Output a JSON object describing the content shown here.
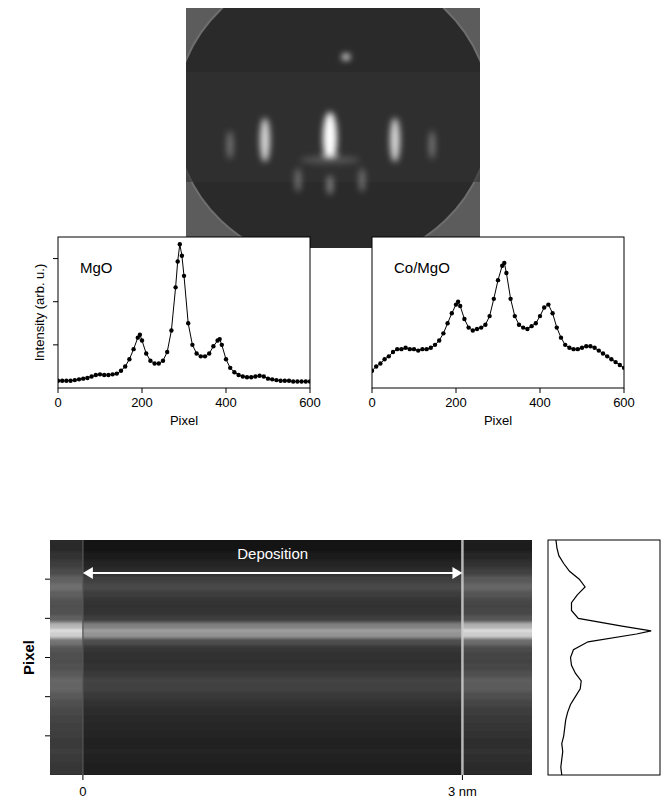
{
  "chart_data": [
    {
      "type": "line",
      "title": "MgO",
      "x_label": "Pixel",
      "y_label": "Intensity (arb. u.)",
      "x": [
        0,
        10,
        20,
        30,
        40,
        50,
        60,
        70,
        80,
        90,
        100,
        110,
        120,
        130,
        140,
        150,
        160,
        170,
        180,
        190,
        195,
        200,
        210,
        220,
        230,
        240,
        250,
        260,
        270,
        280,
        285,
        290,
        295,
        300,
        310,
        320,
        330,
        340,
        350,
        360,
        370,
        380,
        385,
        390,
        400,
        410,
        420,
        430,
        440,
        450,
        460,
        470,
        480,
        490,
        500,
        510,
        520,
        530,
        540,
        550,
        560,
        570,
        580,
        590,
        600
      ],
      "values": [
        0.05,
        0.05,
        0.05,
        0.05,
        0.055,
        0.06,
        0.065,
        0.07,
        0.08,
        0.09,
        0.095,
        0.09,
        0.09,
        0.095,
        0.1,
        0.12,
        0.15,
        0.2,
        0.27,
        0.35,
        0.37,
        0.33,
        0.24,
        0.19,
        0.17,
        0.17,
        0.19,
        0.25,
        0.4,
        0.7,
        0.88,
        1.0,
        0.92,
        0.78,
        0.45,
        0.3,
        0.24,
        0.22,
        0.22,
        0.24,
        0.29,
        0.33,
        0.34,
        0.3,
        0.2,
        0.14,
        0.11,
        0.09,
        0.08,
        0.075,
        0.075,
        0.08,
        0.085,
        0.08,
        0.065,
        0.06,
        0.055,
        0.05,
        0.05,
        0.05,
        0.045,
        0.045,
        0.045,
        0.045,
        0.045
      ],
      "xlim": [
        0,
        600
      ],
      "xticks": [
        0,
        200,
        400,
        600
      ],
      "ylim": [
        0,
        1.05
      ],
      "yticks": [
        0.3,
        0.6,
        0.9
      ],
      "tick_labels": "x",
      "marker": "circle",
      "color": "#000000"
    },
    {
      "type": "line",
      "title": "Co/MgO",
      "x_label": "Pixel",
      "x": [
        0,
        10,
        20,
        30,
        40,
        50,
        60,
        70,
        80,
        90,
        100,
        110,
        120,
        130,
        140,
        150,
        160,
        170,
        180,
        190,
        200,
        205,
        210,
        220,
        230,
        240,
        250,
        260,
        270,
        280,
        290,
        300,
        310,
        315,
        320,
        330,
        340,
        350,
        360,
        370,
        380,
        390,
        400,
        410,
        420,
        430,
        440,
        450,
        460,
        470,
        480,
        490,
        500,
        510,
        520,
        530,
        540,
        550,
        560,
        570,
        580,
        590,
        600
      ],
      "values": [
        0.12,
        0.15,
        0.17,
        0.2,
        0.22,
        0.25,
        0.27,
        0.27,
        0.28,
        0.27,
        0.27,
        0.26,
        0.27,
        0.27,
        0.28,
        0.3,
        0.33,
        0.38,
        0.45,
        0.52,
        0.58,
        0.6,
        0.57,
        0.48,
        0.42,
        0.4,
        0.41,
        0.42,
        0.44,
        0.5,
        0.62,
        0.75,
        0.85,
        0.87,
        0.8,
        0.62,
        0.5,
        0.44,
        0.42,
        0.41,
        0.43,
        0.45,
        0.5,
        0.56,
        0.58,
        0.52,
        0.42,
        0.35,
        0.3,
        0.28,
        0.27,
        0.27,
        0.28,
        0.29,
        0.29,
        0.28,
        0.26,
        0.24,
        0.22,
        0.2,
        0.18,
        0.16,
        0.14
      ],
      "xlim": [
        0,
        600
      ],
      "xticks": [
        0,
        200,
        400,
        600
      ],
      "ylim": [
        0,
        1.05
      ],
      "tick_labels": "x",
      "marker": "circle",
      "color": "#000000"
    },
    {
      "type": "image",
      "y_label": "Pixel",
      "xlim": [
        -0.26,
        3.55
      ],
      "xticks": [
        0,
        {
          "value": 3,
          "label": "3 nm"
        }
      ],
      "ylim": [
        0,
        600
      ],
      "yticks": [
        100,
        200,
        300,
        400,
        500
      ],
      "tick_labels": "x",
      "annotation": {
        "text": "Deposition",
        "x": [
          0,
          3
        ]
      }
    },
    {
      "type": "line",
      "x": [
        0,
        20,
        40,
        60,
        80,
        100,
        120,
        140,
        160,
        180,
        200,
        220,
        240,
        260,
        280,
        300,
        320,
        340,
        360,
        368,
        380,
        400,
        420,
        440,
        460,
        480,
        500,
        520,
        540,
        560,
        580,
        600
      ],
      "values": [
        0.08,
        0.07,
        0.08,
        0.09,
        0.08,
        0.1,
        0.11,
        0.12,
        0.14,
        0.17,
        0.22,
        0.27,
        0.28,
        0.22,
        0.18,
        0.17,
        0.2,
        0.35,
        0.85,
        1.0,
        0.7,
        0.25,
        0.18,
        0.18,
        0.24,
        0.32,
        0.26,
        0.16,
        0.1,
        0.05,
        0.03,
        0.02
      ],
      "xlim": [
        0,
        600
      ],
      "ylim": [
        0,
        1.05
      ],
      "tick_labels": false,
      "color": "#000000"
    }
  ]
}
